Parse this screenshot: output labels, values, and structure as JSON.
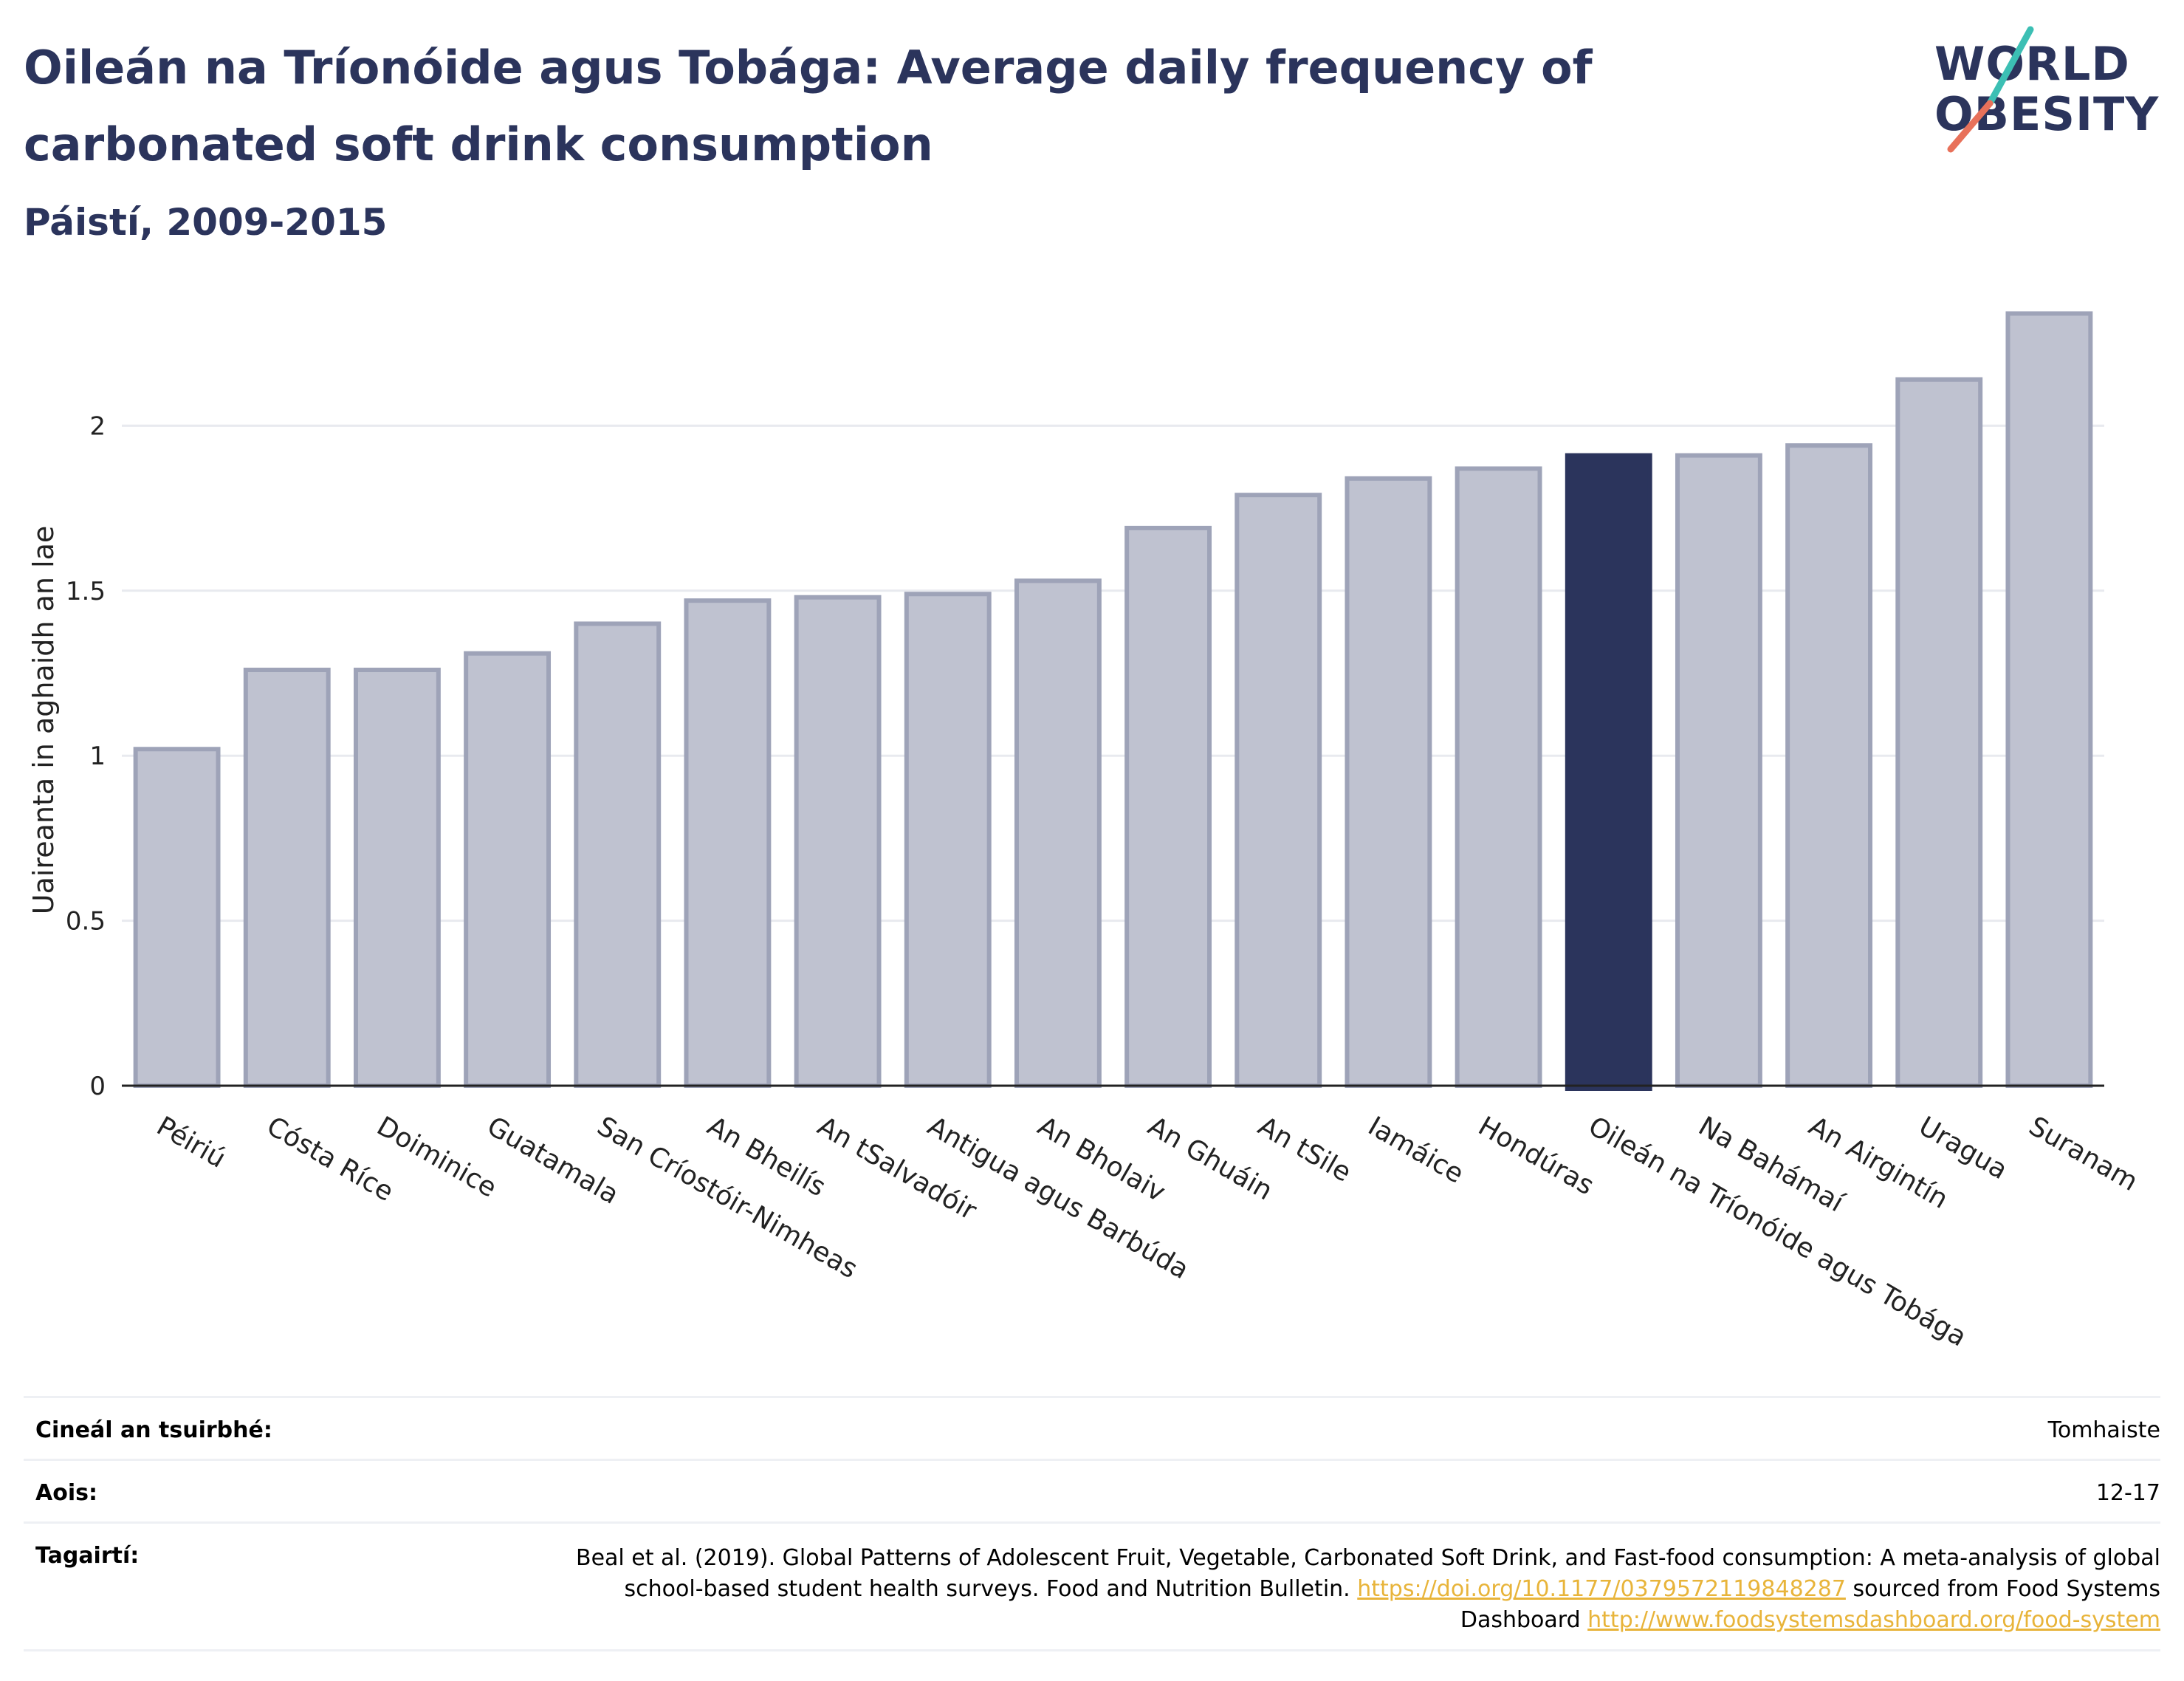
{
  "header": {
    "title_line1": "Oileán na Tríonóide agus Tobága: Average daily frequency of",
    "title_line2": "carbonated soft drink consumption",
    "subtitle": "Páistí, 2009-2015"
  },
  "logo": {
    "line1": "WORLD",
    "line2": "OBESITY",
    "slash_colors": [
      "#3cbfb4",
      "#e8715a"
    ]
  },
  "colors": {
    "bar": "#bfc2d0",
    "bar_stroke": "#9ea3b8",
    "highlight": "#2b345c",
    "grid": "#e8eaef",
    "axis": "#222222"
  },
  "chart_data": {
    "type": "bar",
    "ylabel": "Uaireanta in aghaidh an lae",
    "ylim": [
      0,
      2.35
    ],
    "yticks": [
      0,
      0.5,
      1,
      1.5,
      2
    ],
    "ytick_labels": [
      "0",
      "0.5",
      "1",
      "1.5",
      "2"
    ],
    "grid": true,
    "highlight": "Oileán na Tríonóide agus Tobága",
    "categories": [
      "Péiriú",
      "Cósta Ríce",
      "Doiminice",
      "Guatamala",
      "San Críostóir-Nimheas",
      "An Bheilís",
      "An tSalvadóir",
      "Antigua agus Barbúda",
      "An Bholaiv",
      "An Ghuáin",
      "An tSile",
      "Iamáice",
      "Hondúras",
      "Oileán na Tríonóide agus Tobága",
      "Na Bahámaí",
      "An Airgintín",
      "Uragua",
      "Suranam"
    ],
    "values": [
      1.02,
      1.26,
      1.26,
      1.31,
      1.4,
      1.47,
      1.48,
      1.49,
      1.53,
      1.69,
      1.79,
      1.84,
      1.87,
      1.91,
      1.91,
      1.94,
      2.14,
      2.34
    ]
  },
  "info": {
    "survey_label": "Cineál an tsuirbhé:",
    "survey_value": "Tomhaiste",
    "age_label": "Aois:",
    "age_value": "12-17",
    "ref_label": "Tagairtí:",
    "ref_text1": "Beal et al. (2019). Global Patterns of Adolescent Fruit, Vegetable, Carbonated Soft Drink, and Fast-food consumption: A meta-analysis of global school-based student health surveys. Food and Nutrition Bulletin. ",
    "ref_link1": "https://doi.org/10.1177/0379572119848287",
    "ref_text2": " sourced from Food Systems Dashboard ",
    "ref_link2": "http://www.foodsystemsdashboard.org/food-system"
  }
}
